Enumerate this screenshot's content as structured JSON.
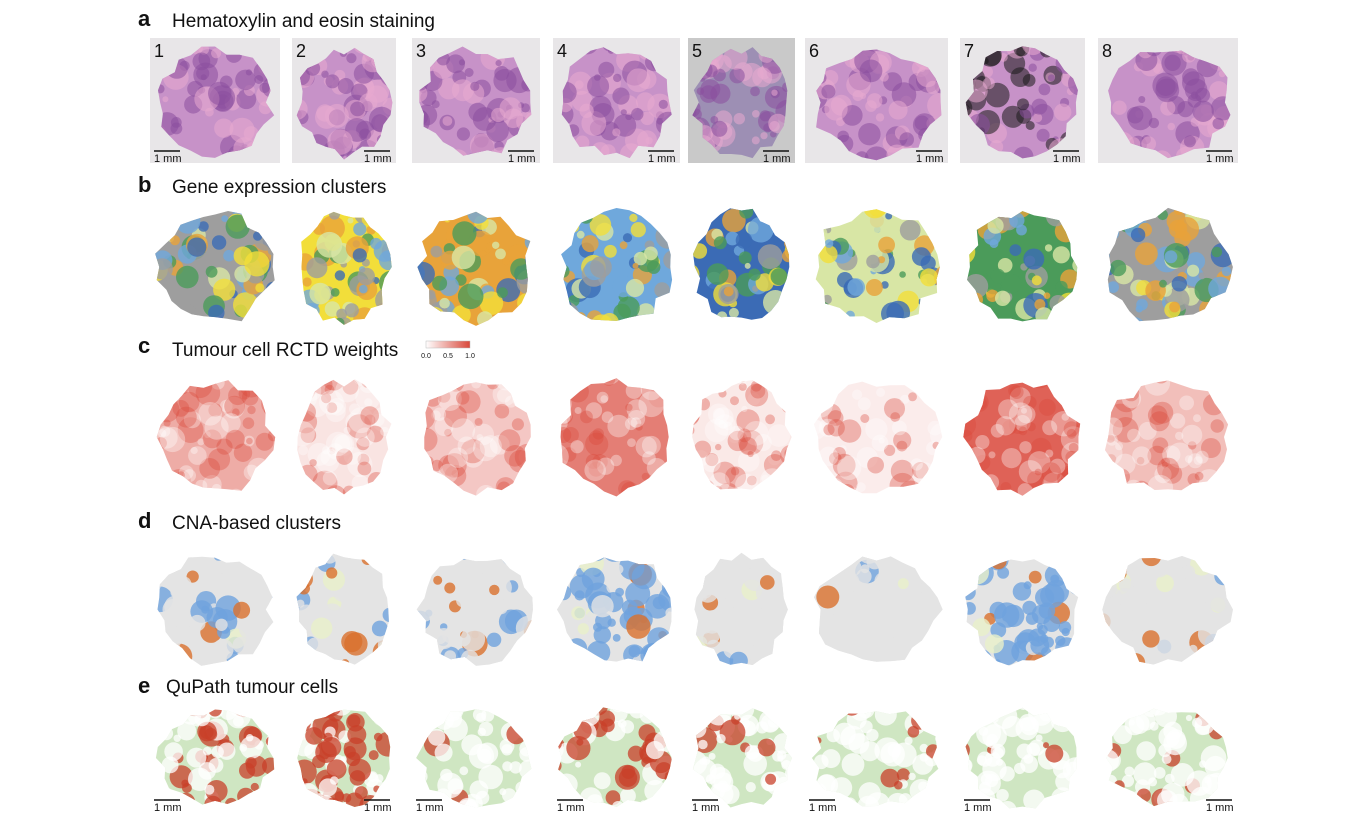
{
  "panels": [
    {
      "letter": "a",
      "title": "Hematoxylin and eosin staining",
      "sample_labels": [
        "1",
        "2",
        "3",
        "4",
        "5",
        "6",
        "7",
        "8"
      ],
      "scale_bars": [
        "1 mm",
        "1 mm",
        "1 mm",
        "1 mm",
        "1 mm",
        "1 mm",
        "1 mm",
        "1 mm"
      ]
    },
    {
      "letter": "b",
      "title": "Gene expression clusters"
    },
    {
      "letter": "c",
      "title": "Tumour cell RCTD weights",
      "colorbar": {
        "labels": [
          "0.0",
          "0.5",
          "1.0"
        ]
      }
    },
    {
      "letter": "d",
      "title": "CNA-based clusters"
    },
    {
      "letter": "e",
      "title": "QuPath tumour cells",
      "scale_bars": [
        "1 mm",
        "1 mm",
        "1 mm",
        "1 mm",
        "1 mm",
        "1 mm",
        "1 mm",
        "1 mm"
      ]
    }
  ]
}
